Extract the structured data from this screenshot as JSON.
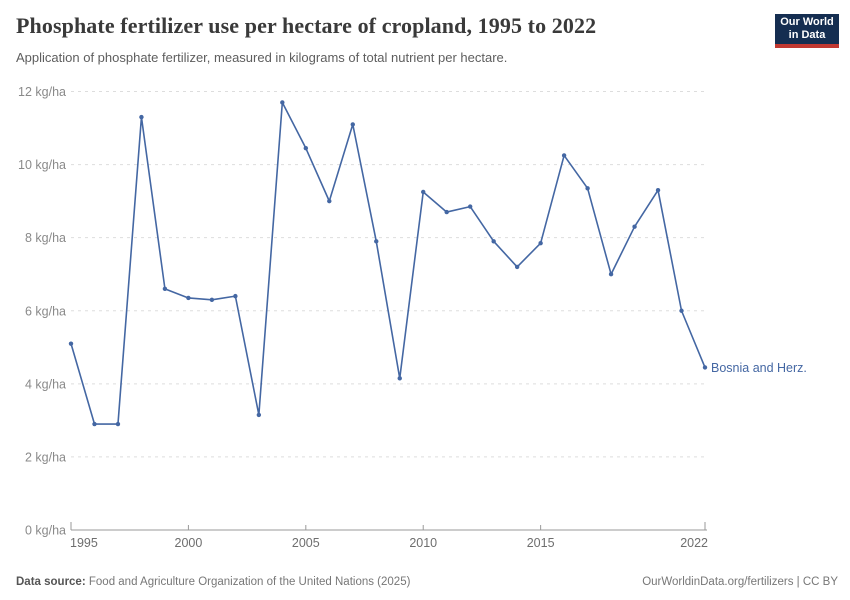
{
  "header": {
    "logo": {
      "line1": "Our World",
      "line2": "in Data"
    }
  },
  "chart_data": {
    "type": "line",
    "title": "Phosphate fertilizer use per hectare of cropland, 1995 to 2022",
    "subtitle": "Application of phosphate fertilizer, measured in kilograms of total nutrient per hectare.",
    "xlabel": "",
    "ylabel": "kg/ha",
    "xlim": [
      1995,
      2022
    ],
    "ylim": [
      0,
      12
    ],
    "xticks": [
      1995,
      2000,
      2005,
      2010,
      2015,
      2022
    ],
    "yticks": [
      0,
      2,
      4,
      6,
      8,
      10,
      12
    ],
    "ytick_suffix": " kg/ha",
    "grid": "horizontal-dashed",
    "legend_position": "line-end-label",
    "x": [
      1995,
      1996,
      1997,
      1998,
      1999,
      2000,
      2001,
      2002,
      2003,
      2004,
      2005,
      2006,
      2007,
      2008,
      2009,
      2010,
      2011,
      2012,
      2013,
      2014,
      2015,
      2016,
      2017,
      2018,
      2019,
      2020,
      2021,
      2022
    ],
    "series": [
      {
        "name": "Bosnia and Herz.",
        "color": "#4467A3",
        "values": [
          5.1,
          2.9,
          2.9,
          11.3,
          6.6,
          6.35,
          6.3,
          6.4,
          3.15,
          11.7,
          10.45,
          9.0,
          11.1,
          7.9,
          4.15,
          9.25,
          8.7,
          8.85,
          7.9,
          7.2,
          7.85,
          10.25,
          9.35,
          7.0,
          8.3,
          9.3,
          6.0,
          4.45
        ]
      }
    ]
  },
  "footer": {
    "source_label": "Data source:",
    "source_text": "Food and Agriculture Organization of the United Nations (2025)",
    "link": "OurWorldinData.org/fertilizers",
    "separator": " | ",
    "license": "CC BY"
  },
  "colors": {
    "line": "#4467A3",
    "grid": "#DDDDDD",
    "axis": "#999999",
    "y_tick_label": "#8A8A8A",
    "x_tick_label": "#6E6E6E",
    "title": "#3A3A3A",
    "subtitle": "#5E5E5E",
    "footer_text": "#777777",
    "logo_bg": "#152E51",
    "logo_stripe": "#C13831"
  }
}
